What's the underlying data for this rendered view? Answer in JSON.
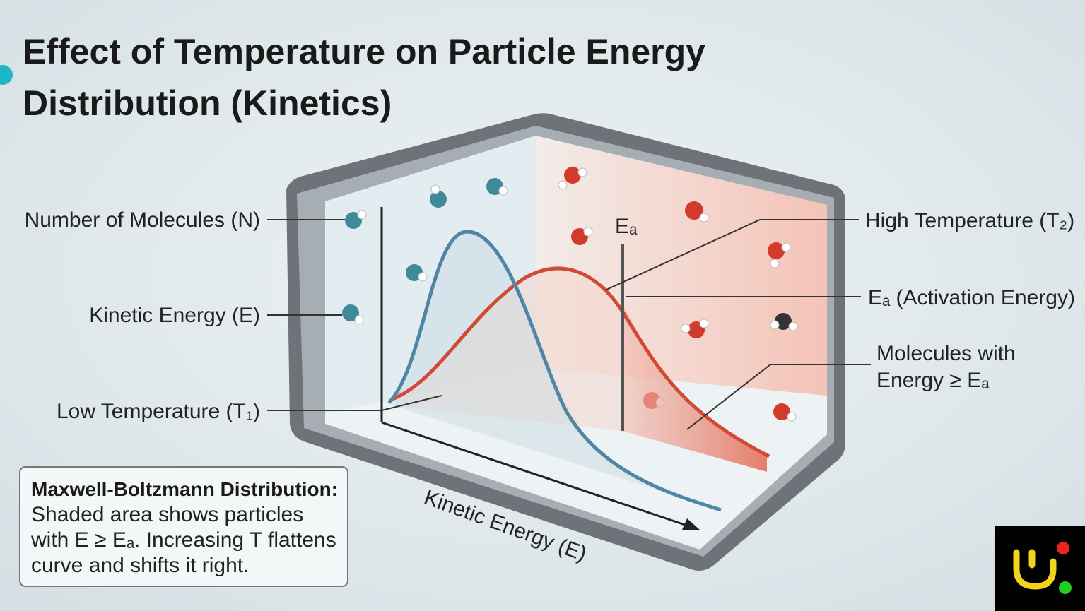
{
  "title_lines": [
    "Effect of Temperature on Particle Energy",
    "Distribution (Kinetics)"
  ],
  "diagram": {
    "ea_marker": "Eₐ",
    "axis_label": "Kinetic Energy (E)",
    "left_labels": [
      "Number of Molecules (N)",
      "Kinetic Energy (E)",
      "Low Temperature (T₁)"
    ],
    "right_labels": [
      "High Temperature (T₂)",
      "Eₐ (Activation Energy)"
    ],
    "shaded_label_lines": [
      "Molecules with",
      "Energy ≥ Eₐ"
    ]
  },
  "info_box": {
    "heading": "Maxwell-Boltzmann Distribution:",
    "lines": [
      "Shaded area shows particles",
      "with E ≥ Eₐ. Increasing T flattens",
      "curve and shifts it right."
    ]
  }
}
